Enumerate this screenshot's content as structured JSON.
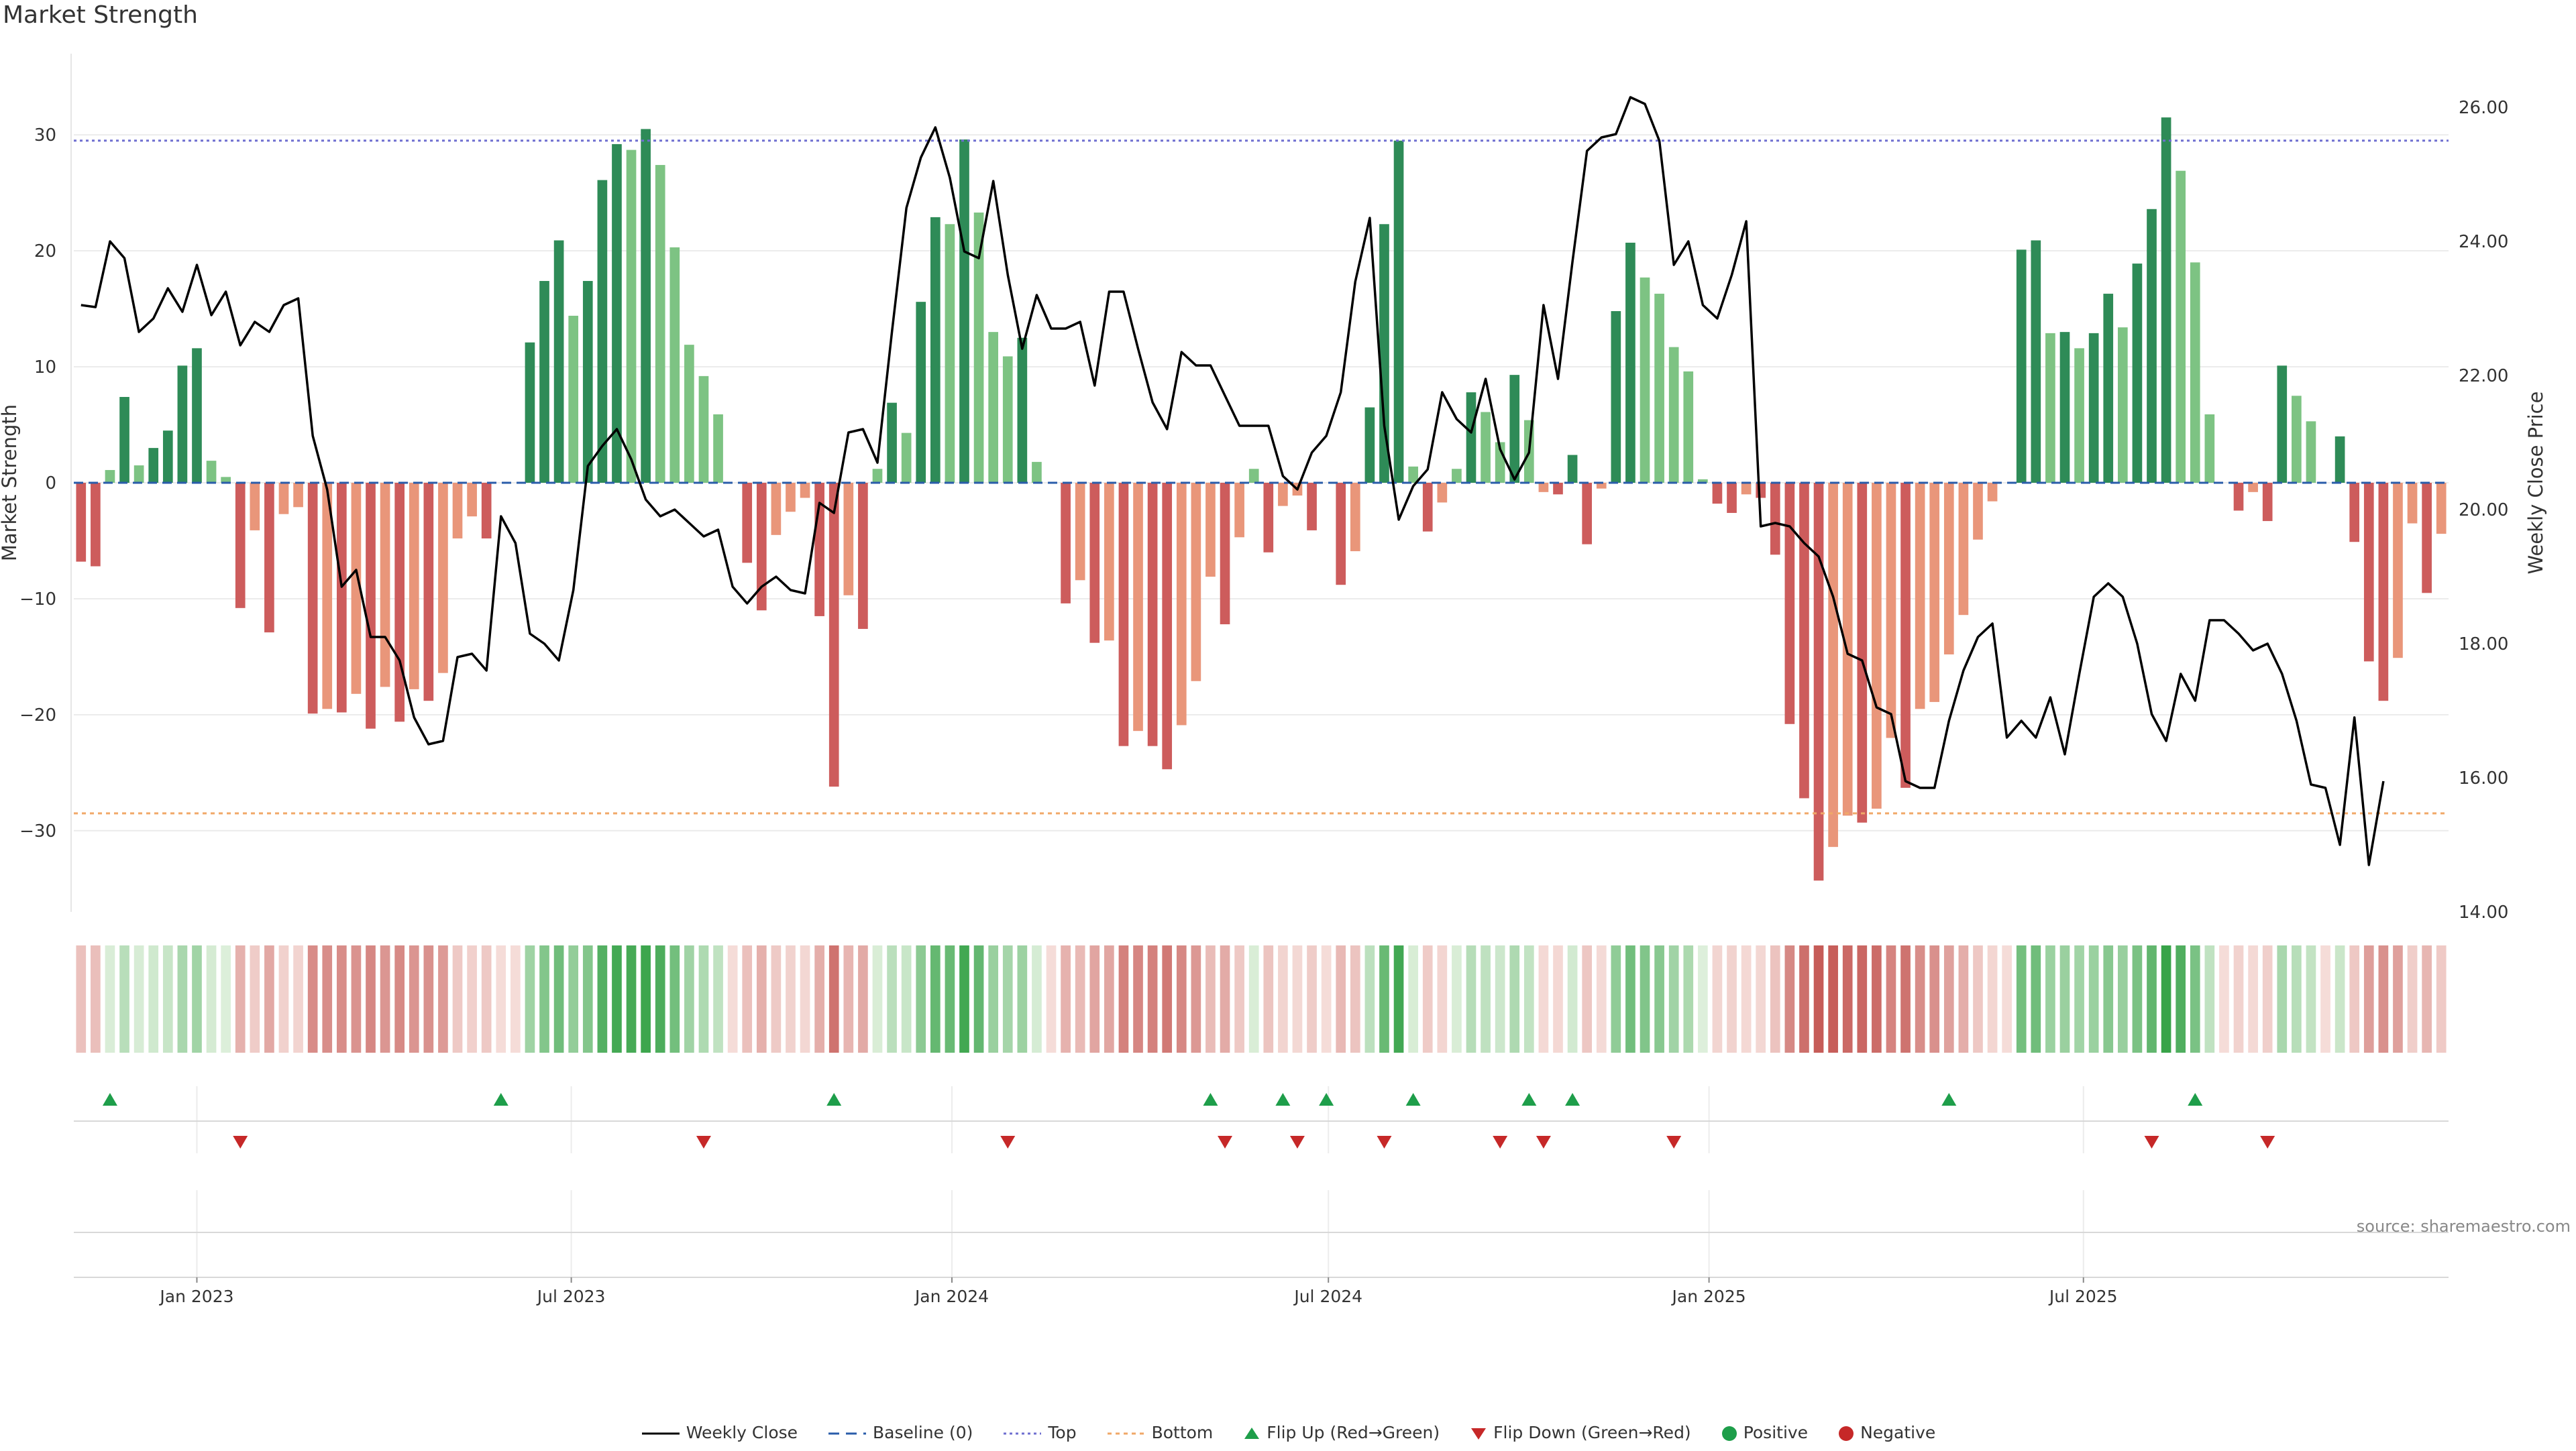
{
  "chart_data": {
    "type": "bar",
    "title": "Market Strength",
    "source": "source: sharemaestro.com",
    "y_left_label": "Market Strength",
    "y_right_label": "Weekly Close Price",
    "y_left_ticks": [
      "30",
      "20",
      "10",
      "0",
      "−10",
      "−20",
      "−30"
    ],
    "y_left_tick_values": [
      30,
      20,
      10,
      0,
      -10,
      -20,
      -30
    ],
    "y_right_ticks": [
      "26.00",
      "24.00",
      "22.00",
      "20.00",
      "18.00",
      "16.00",
      "14.00"
    ],
    "y_right_tick_values": [
      26,
      24,
      22,
      20,
      18,
      16,
      14
    ],
    "x_ticks": [
      "Jan 2023",
      "Jul 2023",
      "Jan 2024",
      "Jul 2024",
      "Jan 2025",
      "Jul 2025"
    ],
    "x_tick_dates": [
      "2023-01-01",
      "2023-07-01",
      "2024-01-01",
      "2024-07-01",
      "2025-01-01",
      "2025-07-01"
    ],
    "ylim_left": [
      -37,
      37
    ],
    "ylim_right": [
      14,
      26.8
    ],
    "top_level": 29.5,
    "bottom_level": -28.5,
    "first_week": "2022-11-06",
    "strength": [
      -6.8,
      -7.2,
      1.1,
      7.4,
      1.5,
      3.0,
      4.5,
      10.1,
      11.6,
      1.9,
      0.5,
      -10.8,
      -4.1,
      -12.9,
      -2.7,
      -2.1,
      -19.9,
      -19.5,
      -19.8,
      -18.2,
      -21.2,
      -17.6,
      -20.6,
      -17.8,
      -18.8,
      -16.4,
      -4.8,
      -2.9,
      -4.8,
      0,
      0,
      12.1,
      17.4,
      20.9,
      14.4,
      17.4,
      26.1,
      29.2,
      28.7,
      30.5,
      27.4,
      20.3,
      11.9,
      9.2,
      5.9,
      0,
      -6.9,
      -11.0,
      -4.5,
      -2.5,
      -1.3,
      -11.5,
      -26.2,
      -9.7,
      -12.6,
      1.2,
      6.9,
      4.3,
      15.6,
      22.9,
      22.3,
      29.6,
      23.3,
      13.0,
      10.9,
      12.5,
      1.8,
      0,
      -10.4,
      -8.4,
      -13.8,
      -13.6,
      -22.7,
      -21.4,
      -22.7,
      -24.7,
      -20.9,
      -17.1,
      -8.1,
      -12.2,
      -4.7,
      1.2,
      -6.0,
      -2.0,
      -1.1,
      -4.1,
      0,
      -8.8,
      -5.9,
      6.5,
      22.3,
      29.5,
      1.4,
      -4.2,
      -1.7,
      1.2,
      7.8,
      6.1,
      3.5,
      9.3,
      5.4,
      -0.8,
      -1.0,
      2.4,
      -5.3,
      -0.5,
      14.8,
      20.7,
      17.7,
      16.3,
      11.7,
      9.6,
      0.3,
      -1.8,
      -2.6,
      -1.0,
      -1.3,
      -6.2,
      -20.8,
      -27.2,
      -34.3,
      -31.4,
      -28.7,
      -29.3,
      -28.1,
      -22.0,
      -26.3,
      -19.5,
      -18.9,
      -14.8,
      -11.4,
      -4.9,
      -1.6,
      0,
      20.1,
      20.9,
      12.9,
      13.0,
      11.6,
      12.9,
      16.3,
      13.4,
      18.9,
      23.6,
      31.5,
      26.9,
      19.0,
      5.9,
      0,
      -2.4,
      -0.8,
      -3.3,
      10.1,
      7.5,
      5.3,
      0,
      4.0,
      -5.1,
      -15.4,
      -18.8,
      -15.1,
      -3.5,
      -9.5,
      -4.4
    ],
    "weekly_close": [
      23.05,
      23.02,
      24.0,
      23.75,
      22.65,
      22.85,
      23.3,
      22.95,
      23.65,
      22.9,
      23.25,
      22.45,
      22.8,
      22.65,
      23.05,
      23.15,
      21.1,
      20.3,
      18.85,
      19.1,
      18.1,
      18.1,
      17.75,
      16.9,
      16.5,
      16.55,
      17.8,
      17.85,
      17.6,
      19.9,
      19.5,
      18.15,
      18.0,
      17.75,
      18.8,
      20.65,
      20.95,
      21.2,
      20.75,
      20.15,
      19.9,
      20.0,
      19.8,
      19.6,
      19.7,
      18.85,
      18.6,
      18.85,
      19.0,
      18.8,
      18.75,
      20.1,
      19.95,
      21.15,
      21.2,
      20.7,
      22.65,
      24.5,
      25.25,
      25.7,
      24.95,
      23.85,
      23.75,
      24.9,
      23.5,
      22.4,
      23.2,
      22.7,
      22.7,
      22.8,
      21.85,
      23.25,
      23.25,
      22.4,
      21.6,
      21.2,
      22.35,
      22.15,
      22.15,
      21.7,
      21.25,
      21.25,
      21.25,
      20.5,
      20.3,
      20.85,
      21.1,
      21.75,
      23.4,
      24.35,
      21.25,
      19.85,
      20.35,
      20.6,
      21.75,
      21.35,
      21.15,
      21.95,
      20.9,
      20.45,
      20.85,
      23.05,
      21.95,
      23.7,
      25.35,
      25.55,
      25.6,
      26.15,
      26.05,
      25.5,
      23.65,
      24.0,
      23.05,
      22.85,
      23.5,
      24.3,
      19.75,
      19.8,
      19.75,
      19.5,
      19.3,
      18.7,
      17.85,
      17.75,
      17.05,
      16.95,
      15.95,
      15.85,
      15.85,
      16.85,
      17.6,
      18.1,
      18.3,
      16.6,
      16.85,
      16.6,
      17.2,
      16.35,
      17.55,
      18.7,
      18.9,
      18.7,
      18.0,
      16.95,
      16.55,
      17.55,
      17.15,
      18.35,
      18.35,
      18.15,
      17.9,
      18.0,
      17.55,
      16.85,
      15.9,
      15.85,
      15.0,
      16.9,
      14.7,
      15.95
    ],
    "flip_up_weeks": [
      2,
      29,
      52,
      78,
      83,
      86,
      92,
      100,
      103,
      129,
      146
    ],
    "flip_down_weeks": [
      11,
      43,
      64,
      79,
      84,
      90,
      98,
      101,
      110,
      143,
      151
    ],
    "heat_colors": {
      "green_light": "#dff0dc",
      "green_dark": "#35a247",
      "red_light": "#f5dcd8",
      "red_dark": "#c65c58"
    },
    "colors": {
      "strong_positive": "#2e8b57",
      "weak_positive": "#7dc383",
      "strong_negative": "#cd5c5c",
      "weak_negative": "#e9967a",
      "top_line": "#6f6fd0",
      "bottom_line": "#f0a868",
      "baseline": "#2a5caa",
      "price_line": "#000000",
      "flip_up": "#1e9e4a",
      "flip_down": "#c62828"
    },
    "legend": [
      {
        "key": "weekly_close",
        "label": "Weekly Close"
      },
      {
        "key": "baseline",
        "label": "Baseline (0)"
      },
      {
        "key": "top",
        "label": "Top"
      },
      {
        "key": "bottom",
        "label": "Bottom"
      },
      {
        "key": "flip_up",
        "label": "Flip Up (Red→Green)"
      },
      {
        "key": "flip_down",
        "label": "Flip Down (Green→Red)"
      },
      {
        "key": "positive",
        "label": "Positive"
      },
      {
        "key": "negative",
        "label": "Negative"
      }
    ]
  }
}
